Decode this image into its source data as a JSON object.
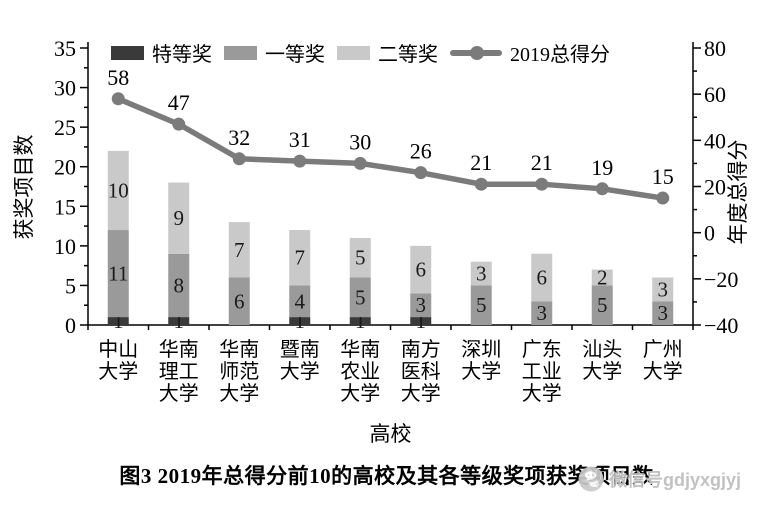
{
  "figure": {
    "caption": "图3  2019年总得分前10的高校及其各等级奖项获奖项目数",
    "watermark_text": "微信号gdjyxgjyj",
    "background": "#ffffff"
  },
  "chart_data": {
    "type": "bar+line",
    "stacked": true,
    "grid": false,
    "legend_position": "top",
    "categories": [
      "中山大学",
      "华南理工大学",
      "华南师范大学",
      "暨南大学",
      "华南农业大学",
      "南方医科大学",
      "深圳大学",
      "广东工业大学",
      "汕头大学",
      "广州大学"
    ],
    "bar_series": [
      {
        "name": "特等奖",
        "color": "#3a3a3a",
        "values": [
          1,
          1,
          0,
          1,
          1,
          1,
          0,
          0,
          0,
          0
        ]
      },
      {
        "name": "一等奖",
        "color": "#9a9a9a",
        "values": [
          11,
          8,
          6,
          4,
          5,
          3,
          5,
          3,
          5,
          3
        ]
      },
      {
        "name": "二等奖",
        "color": "#c9c9c9",
        "values": [
          10,
          9,
          7,
          7,
          5,
          6,
          3,
          6,
          2,
          3
        ]
      }
    ],
    "line_series": {
      "name": "2019总得分",
      "color": "#7b7b7b",
      "axis": "right",
      "values": [
        58,
        47,
        32,
        31,
        30,
        26,
        21,
        21,
        19,
        15
      ]
    },
    "left_axis": {
      "label": "获奖项目数",
      "min": 0,
      "max": 35,
      "major_step": 5,
      "minor_step": 2.5,
      "ticks": [
        0,
        5,
        10,
        15,
        20,
        25,
        30,
        35
      ]
    },
    "right_axis": {
      "label": "年度总得分",
      "min": -40,
      "max": 80,
      "major_step": 20,
      "minor_step": 10,
      "ticks": [
        -40,
        -20,
        0,
        20,
        40,
        60,
        80
      ]
    },
    "x_axis": {
      "label": "高校"
    },
    "bar_label_color": "#1a1a1a"
  }
}
